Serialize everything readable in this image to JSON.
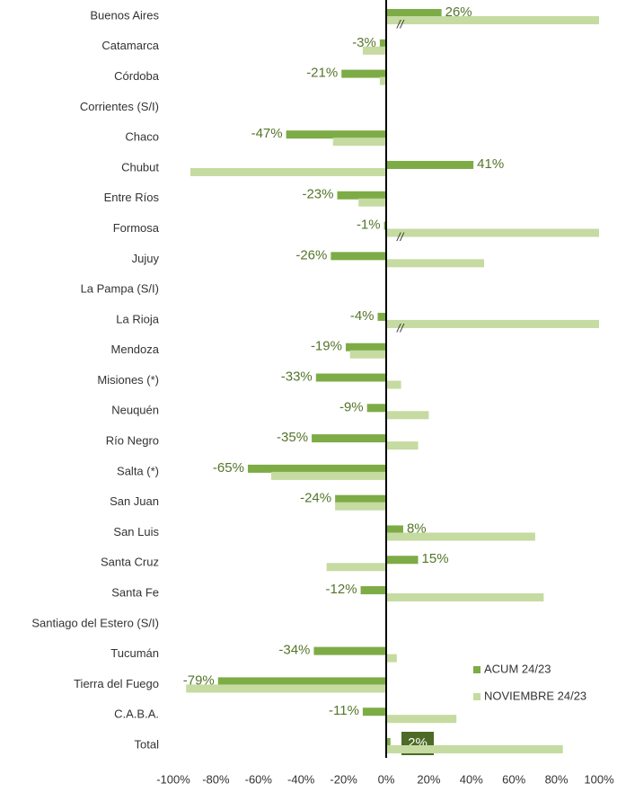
{
  "chart_data": {
    "type": "bar",
    "orientation": "horizontal",
    "categories": [
      "Buenos Aires",
      "Catamarca",
      "Córdoba",
      "Corrientes (S/I)",
      "Chaco",
      "Chubut",
      "Entre Ríos",
      "Formosa",
      "Jujuy",
      "La Pampa (S/I)",
      "La Rioja",
      "Mendoza",
      "Misiones (*)",
      "Neuquén",
      "Río Negro",
      "Salta (*)",
      "San Juan",
      "San Luis",
      "Santa Cruz",
      "Santa Fe",
      "Santiago del Estero (S/I)",
      "Tucumán",
      "Tierra del Fuego",
      "C.A.B.A.",
      "Total"
    ],
    "series": [
      {
        "name": "ACUM 24/23",
        "color": "#7dac46",
        "values": [
          26,
          -3,
          -21,
          null,
          -47,
          41,
          -23,
          -1,
          -26,
          null,
          -4,
          -19,
          -33,
          -9,
          -35,
          -65,
          -24,
          8,
          15,
          -12,
          null,
          -34,
          -79,
          -11,
          2
        ],
        "value_labels": [
          "26%",
          "-3%",
          "-21%",
          null,
          "-47%",
          "41%",
          "-23%",
          "-1%",
          "-26%",
          null,
          "-4%",
          "-19%",
          "-33%",
          "-9%",
          "-35%",
          "-65%",
          "-24%",
          "8%",
          "15%",
          "-12%",
          null,
          "-34%",
          "-79%",
          "-11%",
          "2%"
        ]
      },
      {
        "name": "NOVIEMBRE 24/23",
        "color": "#c5dba1",
        "values": [
          100,
          -11,
          -3,
          null,
          -25,
          -92,
          -13,
          100,
          46,
          null,
          100,
          -17,
          7,
          20,
          15,
          -54,
          -24,
          70,
          -28,
          74,
          null,
          5,
          -94,
          33,
          83
        ]
      }
    ],
    "axis_break": {
      "label": "//",
      "categories": [
        "Buenos Aires",
        "Formosa",
        "La Rioja"
      ]
    },
    "xlim": [
      -100,
      100
    ],
    "xticks": [
      {
        "value": -100,
        "label": "-100%"
      },
      {
        "value": -80,
        "label": "-80%"
      },
      {
        "value": -60,
        "label": "-60%"
      },
      {
        "value": -40,
        "label": "-40%"
      },
      {
        "value": -20,
        "label": "-20%"
      },
      {
        "value": 0,
        "label": "0%"
      },
      {
        "value": 20,
        "label": "20%"
      },
      {
        "value": 40,
        "label": "40%"
      },
      {
        "value": 60,
        "label": "60%"
      },
      {
        "value": 80,
        "label": "80%"
      },
      {
        "value": 100,
        "label": "100%"
      }
    ],
    "legend": "lower right"
  }
}
